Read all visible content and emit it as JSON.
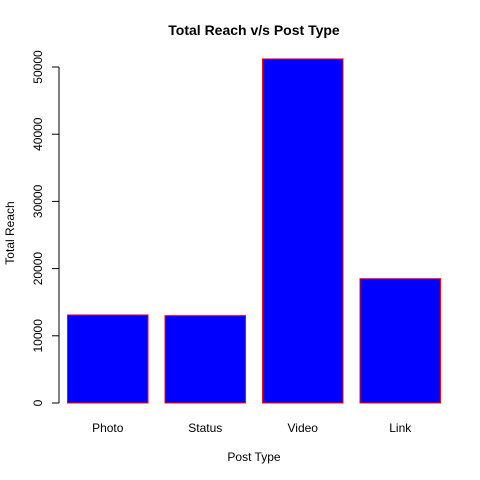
{
  "chart_data": {
    "type": "bar",
    "title": "Total Reach v/s Post Type",
    "xlabel": "Post Type",
    "ylabel": "Total Reach",
    "categories": [
      "Photo",
      "Status",
      "Video",
      "Link"
    ],
    "values": [
      13100,
      13000,
      51200,
      18500
    ],
    "ylim": [
      0,
      52000
    ],
    "yticks": [
      0,
      10000,
      20000,
      30000,
      40000,
      50000
    ],
    "ytick_labels": [
      "0",
      "10000",
      "20000",
      "30000",
      "40000",
      "50000"
    ],
    "bar_fill_color": "#0000ff",
    "bar_border_color": "#ff0000",
    "grid": false,
    "legend": "none"
  }
}
